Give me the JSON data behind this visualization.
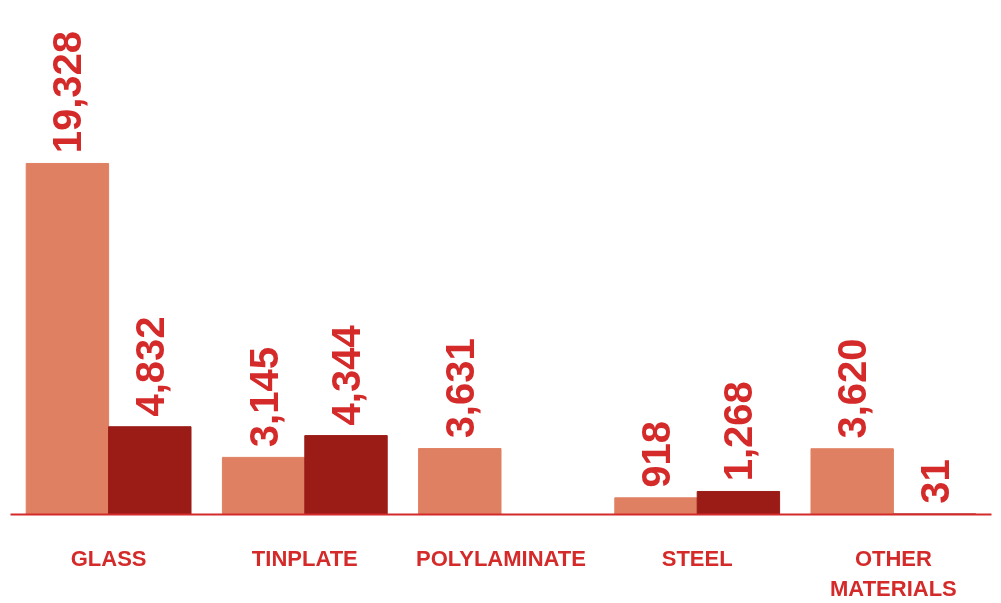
{
  "chart_data": {
    "type": "bar",
    "categories": [
      "GLASS",
      "TINPLATE",
      "POLYLAMINATE",
      "STEEL",
      "OTHER MATERIALS"
    ],
    "series": [
      {
        "color": "#e08062",
        "values": [
          19328,
          3145,
          3631,
          918,
          3620
        ],
        "value_labels": [
          "19,328",
          "3,145",
          "3,631",
          "918",
          "3,620"
        ]
      },
      {
        "color": "#9b1b17",
        "values": [
          4832,
          4344,
          null,
          1268,
          31
        ],
        "value_labels": [
          "4,832",
          "4,344",
          null,
          "1,268",
          "31"
        ]
      }
    ],
    "grid": false
  }
}
